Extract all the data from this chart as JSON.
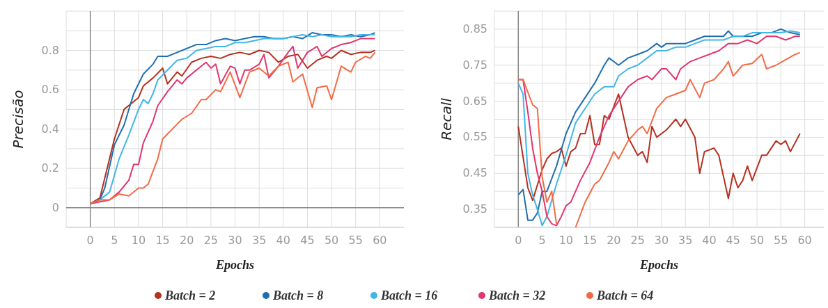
{
  "chart_data": [
    {
      "type": "line",
      "xlabel": "Epochs",
      "ylabel": "Precisão",
      "xlim": [
        -5,
        65
      ],
      "ylim": [
        -0.1,
        1.0
      ],
      "xticks": [
        0,
        5,
        10,
        15,
        20,
        25,
        30,
        35,
        40,
        45,
        50,
        55,
        60
      ],
      "yticks": [
        {
          "value": -0.1,
          "label": null
        },
        0,
        {
          "value": 0.1,
          "label": null
        },
        0.2,
        {
          "value": 0.3,
          "label": null
        },
        0.4,
        {
          "value": 0.5,
          "label": null
        },
        0.6,
        {
          "value": 0.7,
          "label": null
        },
        0.8,
        {
          "value": 0.9,
          "label": null
        }
      ],
      "grid": true,
      "legend": "bottom",
      "series": [
        {
          "name": "Batch = 2",
          "color": "#b5301f",
          "x": [
            0,
            2,
            3,
            5,
            7,
            9,
            10,
            11,
            13,
            15,
            16,
            18,
            19,
            21,
            23,
            25,
            27,
            29,
            31,
            33,
            35,
            37,
            39,
            41,
            43,
            45,
            47,
            49,
            50,
            52,
            54,
            56,
            58,
            59
          ],
          "values": [
            0.02,
            0.05,
            0.15,
            0.35,
            0.5,
            0.54,
            0.56,
            0.62,
            0.66,
            0.71,
            0.63,
            0.69,
            0.67,
            0.74,
            0.76,
            0.77,
            0.76,
            0.78,
            0.79,
            0.78,
            0.8,
            0.79,
            0.74,
            0.77,
            0.78,
            0.71,
            0.75,
            0.77,
            0.76,
            0.8,
            0.78,
            0.79,
            0.79,
            0.8
          ]
        },
        {
          "name": "Batch = 8",
          "color": "#1f6fb0",
          "x": [
            0,
            2,
            3,
            5,
            7,
            9,
            11,
            13,
            14,
            16,
            18,
            20,
            22,
            24,
            26,
            28,
            30,
            32,
            34,
            36,
            38,
            40,
            42,
            44,
            46,
            48,
            50,
            52,
            54,
            56,
            58,
            59
          ],
          "values": [
            0.02,
            0.04,
            0.1,
            0.32,
            0.42,
            0.58,
            0.68,
            0.73,
            0.77,
            0.77,
            0.79,
            0.81,
            0.83,
            0.83,
            0.85,
            0.86,
            0.85,
            0.86,
            0.87,
            0.87,
            0.86,
            0.86,
            0.87,
            0.86,
            0.89,
            0.88,
            0.88,
            0.87,
            0.88,
            0.87,
            0.88,
            0.89
          ]
        },
        {
          "name": "Batch = 16",
          "color": "#41b6e6",
          "x": [
            0,
            2,
            4,
            6,
            8,
            10,
            11,
            12,
            13,
            14,
            16,
            18,
            20,
            22,
            24,
            26,
            28,
            30,
            32,
            34,
            36,
            38,
            40,
            42,
            44,
            46,
            48,
            50,
            52,
            54,
            56,
            58,
            59
          ],
          "values": [
            0.02,
            0.04,
            0.08,
            0.25,
            0.37,
            0.5,
            0.55,
            0.53,
            0.58,
            0.65,
            0.7,
            0.75,
            0.76,
            0.8,
            0.81,
            0.82,
            0.82,
            0.84,
            0.84,
            0.85,
            0.86,
            0.86,
            0.86,
            0.87,
            0.88,
            0.87,
            0.88,
            0.87,
            0.87,
            0.87,
            0.88,
            0.88,
            0.88
          ]
        },
        {
          "name": "Batch = 32",
          "color": "#e0356e",
          "x": [
            0,
            2,
            4,
            6,
            8,
            9,
            10,
            11,
            13,
            14,
            16,
            18,
            19,
            20,
            22,
            24,
            25,
            26,
            27,
            29,
            30,
            31,
            32,
            33,
            35,
            36,
            37,
            39,
            41,
            42,
            43,
            45,
            47,
            48,
            50,
            52,
            54,
            56,
            58,
            59
          ],
          "values": [
            0.02,
            0.03,
            0.04,
            0.08,
            0.14,
            0.22,
            0.22,
            0.33,
            0.44,
            0.52,
            0.59,
            0.65,
            0.63,
            0.66,
            0.7,
            0.74,
            0.71,
            0.73,
            0.63,
            0.72,
            0.71,
            0.63,
            0.7,
            0.7,
            0.73,
            0.78,
            0.66,
            0.72,
            0.79,
            0.82,
            0.71,
            0.79,
            0.82,
            0.77,
            0.81,
            0.83,
            0.84,
            0.86,
            0.86,
            0.86
          ]
        },
        {
          "name": "Batch = 64",
          "color": "#f26a45",
          "x": [
            0,
            2,
            4,
            6,
            8,
            10,
            11,
            12,
            14,
            15,
            17,
            19,
            21,
            23,
            24,
            26,
            27,
            29,
            31,
            33,
            35,
            37,
            39,
            41,
            42,
            44,
            46,
            47,
            49,
            50,
            52,
            54,
            55,
            57,
            58,
            59
          ],
          "values": [
            0.02,
            0.04,
            0.04,
            0.07,
            0.06,
            0.1,
            0.1,
            0.12,
            0.25,
            0.35,
            0.4,
            0.45,
            0.48,
            0.55,
            0.55,
            0.6,
            0.59,
            0.69,
            0.56,
            0.69,
            0.71,
            0.67,
            0.72,
            0.74,
            0.64,
            0.68,
            0.51,
            0.61,
            0.62,
            0.55,
            0.72,
            0.69,
            0.74,
            0.77,
            0.76,
            0.79
          ]
        }
      ]
    },
    {
      "type": "line",
      "xlabel": "Epochs",
      "ylabel": "Recall",
      "xlim": [
        -5,
        64
      ],
      "ylim": [
        0.3,
        0.9
      ],
      "xticks": [
        0,
        5,
        10,
        15,
        20,
        25,
        30,
        35,
        40,
        45,
        50,
        55,
        60
      ],
      "yticks": [
        {
          "value": 0.3,
          "label": null
        },
        0.35,
        {
          "value": 0.4,
          "label": null
        },
        0.45,
        {
          "value": 0.5,
          "label": null
        },
        0.55,
        {
          "value": 0.6,
          "label": null
        },
        0.65,
        {
          "value": 0.7,
          "label": null
        },
        0.75,
        {
          "value": 0.8,
          "label": null
        },
        0.85
      ],
      "grid": true,
      "legend": "bottom",
      "series": [
        {
          "name": "Batch = 2",
          "color": "#b5301f",
          "x": [
            0,
            2,
            3,
            5,
            6,
            7,
            8,
            9,
            10,
            11,
            12,
            13,
            14,
            15,
            16,
            17,
            18,
            19,
            21,
            23,
            25,
            26,
            27,
            28,
            29,
            31,
            33,
            34,
            35,
            37,
            38,
            39,
            41,
            42,
            44,
            45,
            46,
            47,
            48,
            49,
            51,
            52,
            54,
            55,
            56,
            57,
            59
          ],
          "values": [
            0.58,
            0.41,
            0.375,
            0.46,
            0.49,
            0.505,
            0.51,
            0.52,
            0.47,
            0.51,
            0.52,
            0.56,
            0.56,
            0.61,
            0.53,
            0.53,
            0.61,
            0.6,
            0.67,
            0.55,
            0.5,
            0.51,
            0.48,
            0.58,
            0.55,
            0.57,
            0.6,
            0.58,
            0.6,
            0.55,
            0.45,
            0.51,
            0.52,
            0.5,
            0.38,
            0.45,
            0.41,
            0.43,
            0.47,
            0.43,
            0.5,
            0.5,
            0.54,
            0.53,
            0.54,
            0.51,
            0.56
          ]
        },
        {
          "name": "Batch = 8",
          "color": "#1f6fb0",
          "x": [
            0,
            1,
            2,
            3,
            4,
            5,
            6,
            8,
            10,
            12,
            14,
            16,
            18,
            19,
            21,
            23,
            25,
            27,
            29,
            30,
            31,
            33,
            35,
            37,
            39,
            41,
            43,
            44,
            45,
            47,
            49,
            51,
            53,
            55,
            57,
            59
          ],
          "values": [
            0.39,
            0.405,
            0.32,
            0.32,
            0.34,
            0.4,
            0.4,
            0.47,
            0.56,
            0.62,
            0.66,
            0.7,
            0.75,
            0.77,
            0.75,
            0.77,
            0.78,
            0.79,
            0.81,
            0.8,
            0.81,
            0.81,
            0.81,
            0.82,
            0.83,
            0.83,
            0.83,
            0.845,
            0.83,
            0.83,
            0.83,
            0.84,
            0.84,
            0.85,
            0.84,
            0.835
          ]
        },
        {
          "name": "Batch = 16",
          "color": "#41b6e6",
          "x": [
            0,
            1,
            2,
            3,
            4,
            5,
            6,
            8,
            10,
            12,
            14,
            16,
            18,
            20,
            21,
            23,
            25,
            27,
            29,
            31,
            33,
            35,
            37,
            39,
            41,
            43,
            45,
            47,
            49,
            51,
            53,
            55,
            57,
            59
          ],
          "values": [
            0.7,
            0.67,
            0.45,
            0.39,
            0.35,
            0.305,
            0.33,
            0.42,
            0.5,
            0.59,
            0.63,
            0.67,
            0.69,
            0.69,
            0.72,
            0.74,
            0.75,
            0.77,
            0.79,
            0.79,
            0.8,
            0.8,
            0.81,
            0.82,
            0.82,
            0.82,
            0.83,
            0.83,
            0.84,
            0.84,
            0.84,
            0.84,
            0.845,
            0.84
          ]
        },
        {
          "name": "Batch = 32",
          "color": "#e0356e",
          "x": [
            0,
            1,
            2,
            3,
            4,
            5,
            6,
            7,
            8,
            9,
            10,
            11,
            13,
            15,
            17,
            19,
            21,
            23,
            25,
            27,
            28,
            30,
            31,
            33,
            34,
            36,
            38,
            40,
            42,
            44,
            46,
            48,
            50,
            52,
            54,
            56,
            58,
            59
          ],
          "values": [
            0.71,
            0.71,
            0.62,
            0.52,
            0.45,
            0.4,
            0.33,
            0.31,
            0.305,
            0.33,
            0.36,
            0.37,
            0.43,
            0.48,
            0.55,
            0.61,
            0.65,
            0.69,
            0.71,
            0.72,
            0.71,
            0.74,
            0.74,
            0.71,
            0.74,
            0.76,
            0.77,
            0.78,
            0.79,
            0.81,
            0.81,
            0.82,
            0.81,
            0.83,
            0.83,
            0.82,
            0.83,
            0.83
          ]
        },
        {
          "name": "Batch = 64",
          "color": "#f26a45",
          "x": [
            0,
            1,
            3,
            4,
            5,
            6,
            7,
            8,
            10,
            12,
            14,
            16,
            17,
            19,
            20,
            21,
            23,
            25,
            26,
            27,
            29,
            31,
            33,
            35,
            36,
            38,
            39,
            41,
            43,
            44,
            45,
            47,
            49,
            51,
            52,
            54,
            56,
            58,
            59
          ],
          "values": [
            0.71,
            0.71,
            0.64,
            0.63,
            0.44,
            0.37,
            0.4,
            0.31,
            null,
            0.3,
            0.37,
            0.42,
            0.43,
            0.48,
            0.51,
            0.49,
            0.54,
            0.57,
            0.58,
            0.56,
            0.63,
            0.66,
            0.67,
            0.68,
            0.71,
            0.66,
            0.7,
            0.71,
            0.74,
            0.76,
            0.72,
            0.75,
            0.755,
            0.78,
            0.74,
            0.75,
            0.765,
            0.78,
            0.785
          ]
        }
      ]
    }
  ]
}
